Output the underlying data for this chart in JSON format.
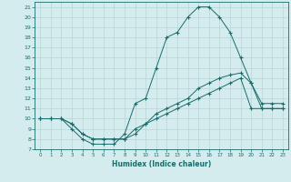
{
  "xlabel": "Humidex (Indice chaleur)",
  "xlim": [
    -0.5,
    23.5
  ],
  "ylim": [
    7,
    21.5
  ],
  "xticks": [
    0,
    1,
    2,
    3,
    4,
    5,
    6,
    7,
    8,
    9,
    10,
    11,
    12,
    13,
    14,
    15,
    16,
    17,
    18,
    19,
    20,
    21,
    22,
    23
  ],
  "yticks": [
    7,
    8,
    9,
    10,
    11,
    12,
    13,
    14,
    15,
    16,
    17,
    18,
    19,
    20,
    21
  ],
  "bg_color": "#d4eced",
  "line_color": "#1a6b6b",
  "grid_color": "#b8d4d4",
  "curves": [
    {
      "x": [
        0,
        1,
        2,
        3,
        4,
        5,
        6,
        7,
        8,
        9,
        10,
        11,
        12,
        13,
        14,
        15,
        16,
        17,
        18,
        19,
        20,
        21,
        22,
        23
      ],
      "y": [
        10,
        10,
        10,
        9,
        8,
        7.5,
        7.5,
        7.5,
        8.5,
        11.5,
        12,
        15,
        18,
        18.5,
        20,
        21,
        21,
        20,
        18.5,
        16,
        13.5,
        11,
        11,
        11
      ]
    },
    {
      "x": [
        0,
        1,
        2,
        3,
        4,
        5,
        6,
        7,
        8,
        9,
        10,
        11,
        12,
        13,
        14,
        15,
        16,
        17,
        18,
        19,
        20,
        21,
        22,
        23
      ],
      "y": [
        10,
        10,
        10,
        9.5,
        8.5,
        8,
        8,
        8,
        8,
        8.5,
        9.5,
        10.5,
        11,
        11.5,
        12,
        13,
        13.5,
        14,
        14.3,
        14.5,
        13.5,
        11.5,
        11.5,
        11.5
      ]
    },
    {
      "x": [
        0,
        1,
        2,
        3,
        4,
        5,
        6,
        7,
        8,
        9,
        10,
        11,
        12,
        13,
        14,
        15,
        16,
        17,
        18,
        19,
        20,
        21,
        22,
        23
      ],
      "y": [
        10,
        10,
        10,
        9.5,
        8.5,
        8,
        8,
        8,
        8,
        9.0,
        9.5,
        10,
        10.5,
        11,
        11.5,
        12,
        12.5,
        13,
        13.5,
        14,
        11,
        11,
        11,
        11
      ]
    }
  ]
}
